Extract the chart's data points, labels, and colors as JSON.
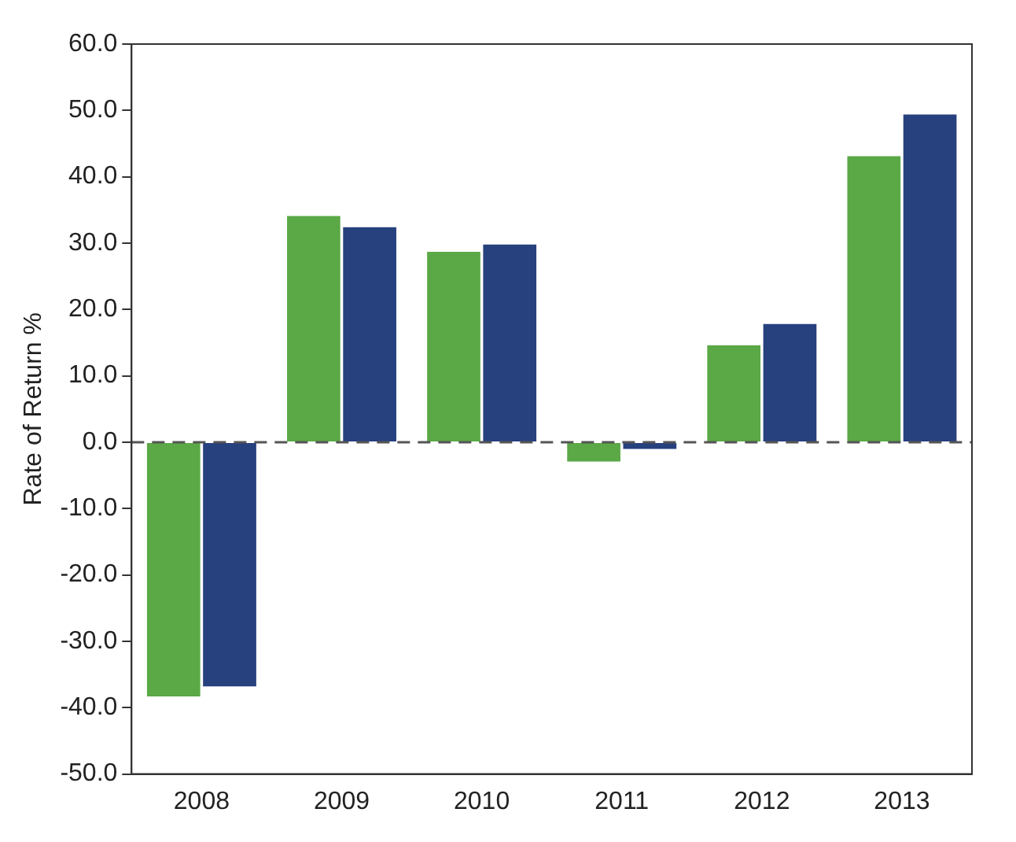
{
  "chart_data": {
    "type": "bar",
    "ylabel": "Rate of Return %",
    "categories": [
      "2008",
      "2009",
      "2010",
      "2011",
      "2012",
      "2013"
    ],
    "series": [
      {
        "color": "#5aa846",
        "values": [
          -38.3,
          34.1,
          28.7,
          -2.9,
          14.6,
          43.1
        ]
      },
      {
        "color": "#27407e",
        "values": [
          -36.8,
          32.4,
          29.8,
          -1.0,
          17.8,
          49.4
        ]
      }
    ],
    "ylim": [
      -50,
      60
    ],
    "yticks": [
      {
        "value": -50,
        "label": "-50.0"
      },
      {
        "value": -40,
        "label": "-40.0"
      },
      {
        "value": -30,
        "label": "-30.0"
      },
      {
        "value": -20,
        "label": "-20.0"
      },
      {
        "value": -10,
        "label": "-10.0"
      },
      {
        "value": 0,
        "label": "0.0"
      },
      {
        "value": 10,
        "label": "10.0"
      },
      {
        "value": 20,
        "label": "20.0"
      },
      {
        "value": 30,
        "label": "30.0"
      },
      {
        "value": 40,
        "label": "40.0"
      },
      {
        "value": 50,
        "label": "50.0"
      },
      {
        "value": 60,
        "label": "60.0"
      }
    ],
    "ref_lines": [
      {
        "axis": "y",
        "value": 0,
        "color": "#555555",
        "line_style": "dashed"
      }
    ],
    "grid": false,
    "legend": false
  }
}
